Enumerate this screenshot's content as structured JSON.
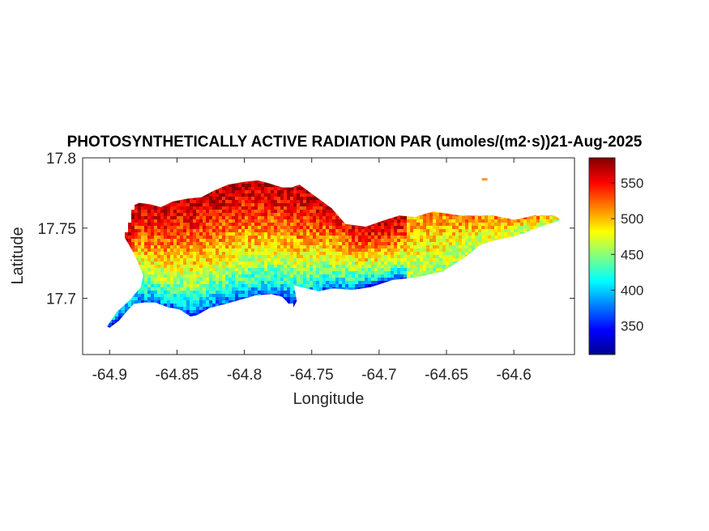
{
  "chart_data": {
    "type": "heatmap",
    "title": "PHOTOSYNTHETICALLY ACTIVE RADIATION PAR (umoles/(m2·s))21-Aug-2025",
    "xlabel": "Longitude",
    "ylabel": "Latitude",
    "xlim": [
      -64.92,
      -64.555
    ],
    "ylim": [
      17.66,
      17.8
    ],
    "xticks": [
      -64.9,
      -64.85,
      -64.8,
      -64.75,
      -64.7,
      -64.65,
      -64.6
    ],
    "xtick_labels": [
      "-64.9",
      "-64.85",
      "-64.8",
      "-64.75",
      "-64.7",
      "-64.65",
      "-64.6"
    ],
    "yticks": [
      17.7,
      17.75,
      17.8
    ],
    "ytick_labels": [
      "17.7",
      "17.75",
      "17.8"
    ],
    "colormap": "jet",
    "clim": [
      310,
      585
    ],
    "colorbar_ticks": [
      350,
      400,
      450,
      500,
      550
    ],
    "colorbar_tick_labels": [
      "350",
      "400",
      "450",
      "500",
      "550"
    ],
    "island_outline": [
      [
        -64.9,
        17.679
      ],
      [
        -64.893,
        17.684
      ],
      [
        -64.887,
        17.691
      ],
      [
        -64.882,
        17.696
      ],
      [
        -64.874,
        17.697
      ],
      [
        -64.866,
        17.697
      ],
      [
        -64.858,
        17.694
      ],
      [
        -64.848,
        17.692
      ],
      [
        -64.84,
        17.687
      ],
      [
        -64.835,
        17.688
      ],
      [
        -64.826,
        17.693
      ],
      [
        -64.81,
        17.697
      ],
      [
        -64.792,
        17.702
      ],
      [
        -64.78,
        17.703
      ],
      [
        -64.772,
        17.701
      ],
      [
        -64.768,
        17.697
      ],
      [
        -64.765,
        17.691
      ],
      [
        -64.761,
        17.698
      ],
      [
        -64.763,
        17.709
      ],
      [
        -64.754,
        17.707
      ],
      [
        -64.745,
        17.705
      ],
      [
        -64.734,
        17.707
      ],
      [
        -64.72,
        17.706
      ],
      [
        -64.706,
        17.708
      ],
      [
        -64.69,
        17.713
      ],
      [
        -64.672,
        17.715
      ],
      [
        -64.653,
        17.719
      ],
      [
        -64.635,
        17.73
      ],
      [
        -64.625,
        17.738
      ],
      [
        -64.615,
        17.741
      ],
      [
        -64.6,
        17.744
      ],
      [
        -64.588,
        17.748
      ],
      [
        -64.58,
        17.751
      ],
      [
        -64.57,
        17.754
      ],
      [
        -64.565,
        17.756
      ],
      [
        -64.57,
        17.759
      ],
      [
        -64.585,
        17.759
      ],
      [
        -64.6,
        17.756
      ],
      [
        -64.615,
        17.759
      ],
      [
        -64.64,
        17.759
      ],
      [
        -64.66,
        17.762
      ],
      [
        -64.673,
        17.758
      ],
      [
        -64.685,
        17.759
      ],
      [
        -64.695,
        17.756
      ],
      [
        -64.71,
        17.751
      ],
      [
        -64.725,
        17.753
      ],
      [
        -64.735,
        17.764
      ],
      [
        -64.745,
        17.771
      ],
      [
        -64.752,
        17.776
      ],
      [
        -64.759,
        17.781
      ],
      [
        -64.765,
        17.779
      ],
      [
        -64.772,
        17.779
      ],
      [
        -64.782,
        17.782
      ],
      [
        -64.79,
        17.784
      ],
      [
        -64.8,
        17.783
      ],
      [
        -64.812,
        17.781
      ],
      [
        -64.822,
        17.777
      ],
      [
        -64.832,
        17.772
      ],
      [
        -64.842,
        17.771
      ],
      [
        -64.853,
        17.769
      ],
      [
        -64.862,
        17.765
      ],
      [
        -64.87,
        17.767
      ],
      [
        -64.878,
        17.768
      ],
      [
        -64.885,
        17.765
      ],
      [
        -64.891,
        17.759
      ],
      [
        -64.893,
        17.751
      ],
      [
        -64.89,
        17.745
      ],
      [
        -64.885,
        17.737
      ],
      [
        -64.88,
        17.728
      ],
      [
        -64.875,
        17.716
      ],
      [
        -64.877,
        17.708
      ],
      [
        -64.885,
        17.699
      ],
      [
        -64.895,
        17.69
      ],
      [
        -64.902,
        17.68
      ]
    ],
    "offshore_islet": [
      -64.622,
      17.785
    ],
    "value_field": {
      "description": "PAR increases from south coast to north coast",
      "min_south_coast": 330,
      "max_north_center": 580,
      "east_tail_mean": 490
    }
  }
}
